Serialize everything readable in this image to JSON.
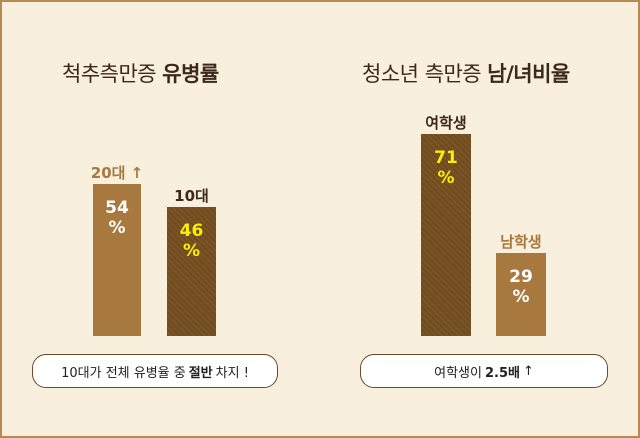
{
  "colors": {
    "light_bar": "#a8793f",
    "dark_bar": "#7a5424",
    "highlight": "#ffee00",
    "background": "#f8efdc"
  },
  "chart_data": [
    {
      "type": "bar",
      "title_prefix": "척추측만증",
      "title_bold": "유병률",
      "categories": [
        "20대",
        "10대"
      ],
      "category_labels": [
        "20대 ↑",
        "10대"
      ],
      "values": [
        54,
        46
      ],
      "value_labels": [
        "54%",
        "46%"
      ],
      "unit": "%",
      "note_before": "10대가 전체 유병율 중",
      "note_bold": "절반",
      "note_after": "차지 !"
    },
    {
      "type": "bar",
      "title_prefix": "청소년 측만증",
      "title_bold": "남/녀비율",
      "categories": [
        "여학생",
        "남학생"
      ],
      "values": [
        71,
        29
      ],
      "value_labels": [
        "71%",
        "29%"
      ],
      "unit": "%",
      "note_before": "여학생이",
      "note_bold": "2.5배",
      "note_after": "↑"
    }
  ]
}
